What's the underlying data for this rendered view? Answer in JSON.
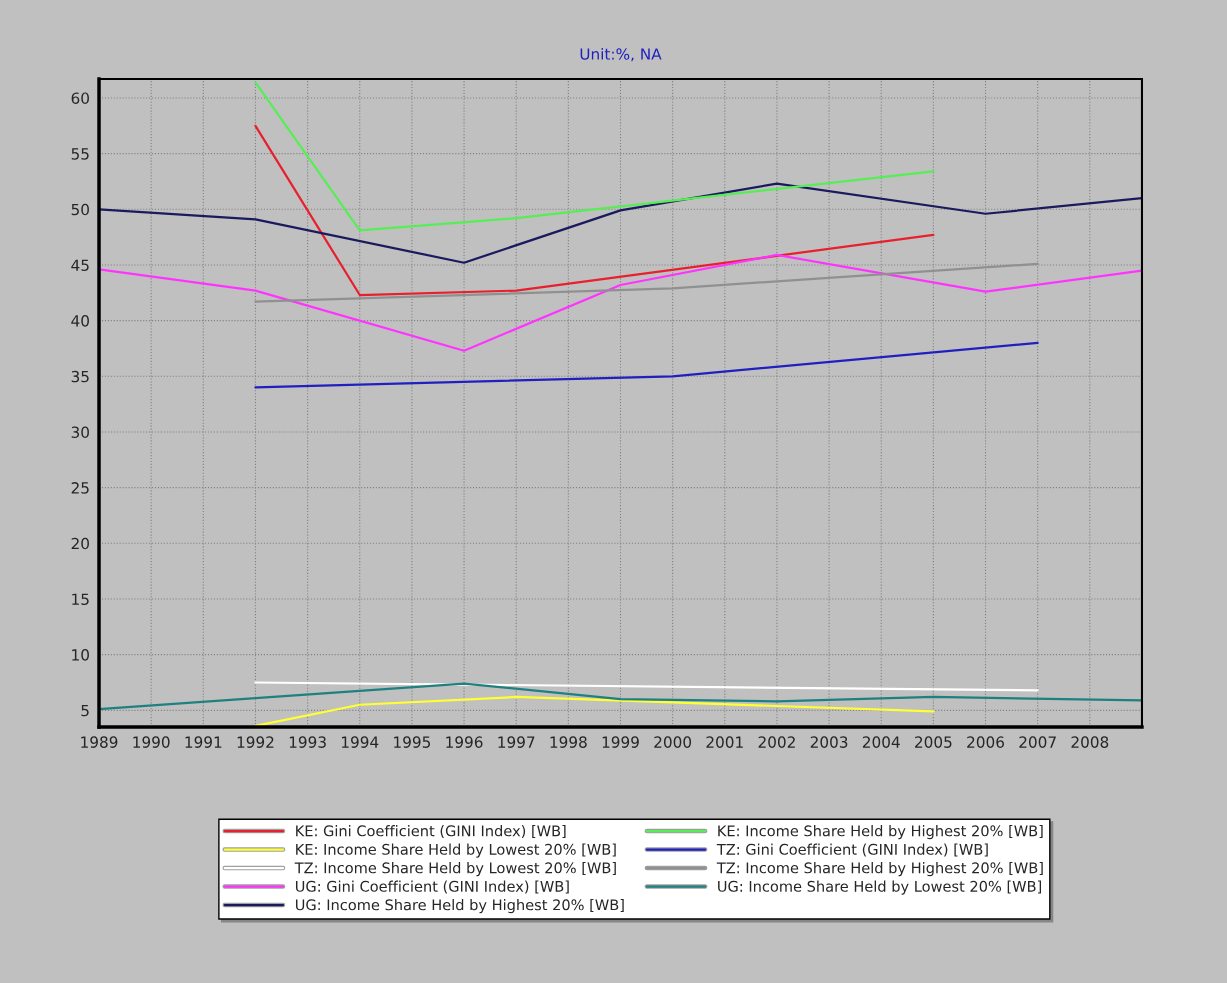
{
  "chart_data": {
    "type": "line",
    "title": "Unit:%, NA",
    "xlim": [
      1989,
      2009
    ],
    "xticks": [
      1989,
      1990,
      1991,
      1992,
      1993,
      1994,
      1995,
      1996,
      1997,
      1998,
      1999,
      2000,
      2001,
      2002,
      2003,
      2004,
      2005,
      2006,
      2007,
      2008
    ],
    "ylim": [
      3.5,
      61.7
    ],
    "yticks": [
      5,
      10,
      15,
      20,
      25,
      30,
      35,
      40,
      45,
      50,
      55,
      60
    ],
    "grid": true,
    "legend": "bottom",
    "marker": "none",
    "line_style": "solid",
    "series": [
      {
        "name": "KE: Gini Coefficient (GINI Index) [WB]",
        "color": "#e8202e",
        "x": [
          1992,
          1994,
          1997,
          2005
        ],
        "values": [
          57.5,
          42.3,
          42.7,
          47.7
        ]
      },
      {
        "name": "KE: Income Share Held by Lowest 20% [WB]",
        "color": "#ffff33",
        "x": [
          1992,
          1994,
          1997,
          2005
        ],
        "values": [
          3.6,
          5.5,
          6.2,
          4.9
        ]
      },
      {
        "name": "TZ: Income Share Held by Lowest 20% [WB]",
        "color": "#ffffff",
        "x": [
          1992,
          2007
        ],
        "values": [
          7.5,
          6.8
        ]
      },
      {
        "name": "UG: Gini Coefficient (GINI Index) [WB]",
        "color": "#ff33ff",
        "x": [
          1989,
          1992,
          1996,
          1999,
          2002,
          2006,
          2009
        ],
        "values": [
          44.6,
          42.7,
          37.3,
          43.2,
          45.9,
          42.6,
          44.5
        ]
      },
      {
        "name": "UG: Income Share Held by Highest 20% [WB]",
        "color": "#1a1a5e",
        "x": [
          1989,
          1992,
          1996,
          1999,
          2002,
          2006,
          2009
        ],
        "values": [
          50.0,
          49.1,
          45.2,
          49.9,
          52.3,
          49.6,
          51.0
        ]
      },
      {
        "name": "KE: Income Share Held by Highest 20% [WB]",
        "color": "#55ee55",
        "x": [
          1992,
          1994,
          1997,
          2005
        ],
        "values": [
          61.4,
          48.1,
          49.2,
          53.4
        ]
      },
      {
        "name": "TZ: Gini Coefficient (GINI Index) [WB]",
        "color": "#2020c0",
        "x": [
          1992,
          2000,
          2007
        ],
        "values": [
          34.0,
          35.0,
          38.0
        ]
      },
      {
        "name": "TZ: Income Share Held by Highest 20% [WB]",
        "color": "#909090",
        "x": [
          1992,
          2000,
          2007
        ],
        "values": [
          41.7,
          42.9,
          45.1
        ]
      },
      {
        "name": "UG: Income Share Held by Lowest 20% [WB]",
        "color": "#1f8080",
        "x": [
          1989,
          1992,
          1996,
          1999,
          2002,
          2005,
          2009
        ],
        "values": [
          5.1,
          6.1,
          7.4,
          6.0,
          5.8,
          6.2,
          5.9
        ]
      }
    ]
  }
}
